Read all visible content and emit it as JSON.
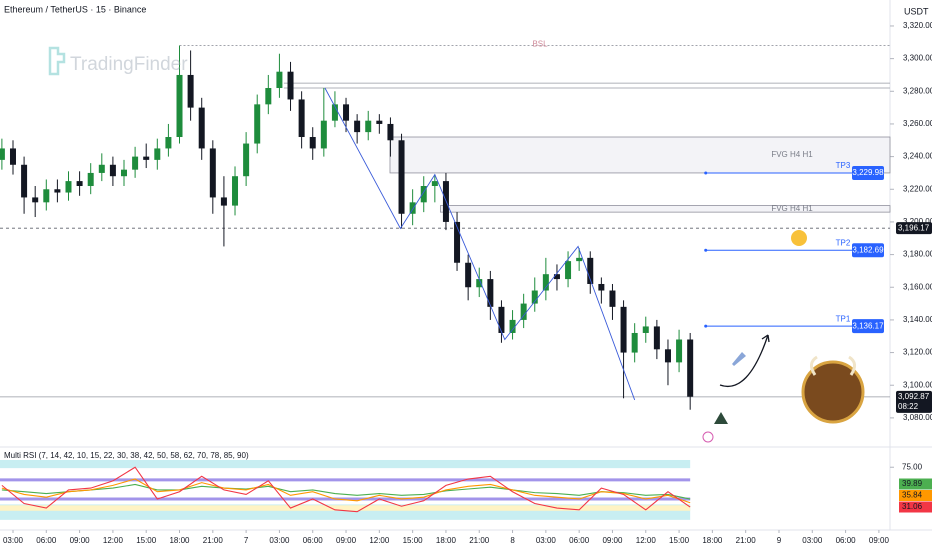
{
  "chart_data": {
    "type": "candlestick",
    "title": "Ethereum / TetherUS · 15 · Binance",
    "currency": "USDT",
    "watermark": "TradingFinder",
    "up_color": "#1e8c3c",
    "down_color": "#131722",
    "x": [
      2,
      3,
      4,
      5,
      6,
      7,
      8,
      9,
      10,
      11,
      12,
      13,
      14,
      15,
      16,
      17,
      18,
      19,
      20,
      21,
      22,
      23,
      24,
      25,
      26,
      27,
      28,
      29,
      30,
      31,
      32,
      33,
      34,
      35,
      36,
      37,
      38,
      39,
      40,
      41,
      42,
      43,
      44,
      45,
      46,
      47,
      48,
      49,
      50,
      51,
      52,
      53,
      54,
      55,
      56,
      57,
      58,
      59,
      60,
      61,
      62,
      63,
      64
    ],
    "open": [
      3238,
      3245,
      3235,
      3215,
      3212,
      3220,
      3218,
      3225,
      3222,
      3230,
      3235,
      3228,
      3232,
      3240,
      3238,
      3245,
      3252,
      3290,
      3270,
      3245,
      3215,
      3210,
      3228,
      3248,
      3272,
      3282,
      3292,
      3275,
      3252,
      3245,
      3262,
      3272,
      3262,
      3255,
      3262,
      3260,
      3250,
      3205,
      3212,
      3222,
      3225,
      3200,
      3175,
      3160,
      3165,
      3148,
      3132,
      3140,
      3150,
      3158,
      3168,
      3165,
      3176,
      3178,
      3162,
      3158,
      3148,
      3120,
      3132,
      3136,
      3122,
      3114,
      3128
    ],
    "high": [
      3251,
      3250,
      3240,
      3222,
      3226,
      3226,
      3231,
      3231,
      3236,
      3242,
      3240,
      3238,
      3246,
      3248,
      3251,
      3260,
      3308,
      3305,
      3276,
      3250,
      3228,
      3234,
      3255,
      3278,
      3290,
      3303,
      3298,
      3280,
      3258,
      3282,
      3280,
      3276,
      3266,
      3268,
      3266,
      3264,
      3254,
      3220,
      3228,
      3229,
      3230,
      3206,
      3180,
      3172,
      3170,
      3152,
      3146,
      3156,
      3166,
      3178,
      3174,
      3182,
      3184,
      3182,
      3166,
      3162,
      3152,
      3138,
      3142,
      3140,
      3128,
      3134,
      3132
    ],
    "low": [
      3232,
      3229,
      3205,
      3203,
      3207,
      3212,
      3213,
      3216,
      3217,
      3225,
      3222,
      3222,
      3227,
      3233,
      3232,
      3240,
      3248,
      3262,
      3238,
      3205,
      3185,
      3204,
      3222,
      3242,
      3266,
      3276,
      3268,
      3245,
      3238,
      3240,
      3258,
      3255,
      3248,
      3250,
      3254,
      3240,
      3196,
      3198,
      3206,
      3212,
      3195,
      3170,
      3152,
      3154,
      3140,
      3126,
      3128,
      3135,
      3145,
      3152,
      3158,
      3160,
      3170,
      3156,
      3150,
      3140,
      3092,
      3114,
      3126,
      3116,
      3100,
      3108,
      3085
    ],
    "close": [
      3245,
      3235,
      3215,
      3212,
      3220,
      3218,
      3225,
      3222,
      3230,
      3235,
      3228,
      3232,
      3240,
      3238,
      3245,
      3252,
      3290,
      3270,
      3245,
      3215,
      3210,
      3228,
      3248,
      3272,
      3282,
      3292,
      3275,
      3252,
      3245,
      3262,
      3272,
      3262,
      3255,
      3262,
      3260,
      3250,
      3205,
      3212,
      3222,
      3225,
      3200,
      3175,
      3160,
      3165,
      3148,
      3132,
      3140,
      3150,
      3158,
      3168,
      3165,
      3176,
      3178,
      3162,
      3158,
      3148,
      3120,
      3132,
      3136,
      3122,
      3114,
      3128,
      3093
    ],
    "xlim": [
      1.83,
      82.0
    ],
    "xticks": [
      {
        "value": 3,
        "label": "03:00"
      },
      {
        "value": 6,
        "label": "06:00"
      },
      {
        "value": 9,
        "label": "09:00"
      },
      {
        "value": 12,
        "label": "12:00"
      },
      {
        "value": 15,
        "label": "15:00"
      },
      {
        "value": 18,
        "label": "18:00"
      },
      {
        "value": 21,
        "label": "21:00"
      },
      {
        "value": 24,
        "label": "7"
      },
      {
        "value": 27,
        "label": "03:00"
      },
      {
        "value": 30,
        "label": "06:00"
      },
      {
        "value": 33,
        "label": "09:00"
      },
      {
        "value": 36,
        "label": "12:00"
      },
      {
        "value": 39,
        "label": "15:00"
      },
      {
        "value": 42,
        "label": "18:00"
      },
      {
        "value": 45,
        "label": "21:00"
      },
      {
        "value": 48,
        "label": "8"
      },
      {
        "value": 51,
        "label": "03:00"
      },
      {
        "value": 54,
        "label": "06:00"
      },
      {
        "value": 57,
        "label": "09:00"
      },
      {
        "value": 60,
        "label": "12:00"
      },
      {
        "value": 63,
        "label": "15:00"
      },
      {
        "value": 66,
        "label": "18:00"
      },
      {
        "value": 69,
        "label": "21:00"
      },
      {
        "value": 72,
        "label": "9"
      },
      {
        "value": 75,
        "label": "03:00"
      },
      {
        "value": 78,
        "label": "06:00"
      },
      {
        "value": 81,
        "label": "09:00"
      }
    ],
    "ylim": [
      3063.4,
      3335.9
    ],
    "yticks": [
      {
        "value": 3320,
        "label": "3,320.00"
      },
      {
        "value": 3300,
        "label": "3,300.00"
      },
      {
        "value": 3280,
        "label": "3,280.00"
      },
      {
        "value": 3260,
        "label": "3,260.00"
      },
      {
        "value": 3240,
        "label": "3,240.00"
      },
      {
        "value": 3220,
        "label": "3,220.00"
      },
      {
        "value": 3200,
        "label": "3,200.00"
      },
      {
        "value": 3180,
        "label": "3,180.00"
      },
      {
        "value": 3160,
        "label": "3,160.00"
      },
      {
        "value": 3140,
        "label": "3,140.00"
      },
      {
        "value": 3120,
        "label": "3,120.00"
      },
      {
        "value": 3100,
        "label": "3,100.00"
      },
      {
        "value": 3080,
        "label": "3,080.00"
      }
    ],
    "bsl": {
      "label": "BSL",
      "value": 3308
    },
    "levels": [
      {
        "value": 3285,
        "start": 27.4
      },
      {
        "value": 3282,
        "start": 27.4
      }
    ],
    "zones": [
      {
        "label": "FVG H4 H1",
        "from": 3230,
        "to": 3252,
        "start": 36.96
      },
      {
        "label": "FVG H4 H1",
        "from": 3206,
        "to": 3210,
        "start": 41.5
      }
    ],
    "targets": [
      {
        "label": "TP3",
        "value": 3229.98,
        "value_label": "3,229.98",
        "start": 65.4
      },
      {
        "label": "TP2",
        "value": 3182.69,
        "value_label": "3,182.69",
        "start": 65.4
      },
      {
        "label": "TP1",
        "value": 3136.17,
        "value_label": "3,136.17",
        "start": 65.4
      }
    ],
    "reference": {
      "value": 3196.17,
      "label": "3,196.17"
    },
    "last_price": {
      "value": 3092.87,
      "label": "3,092.87",
      "countdown": "08:22"
    },
    "zigzag": {
      "x": [
        31.1,
        37.9,
        41.0,
        47.3,
        53.9,
        59.0
      ],
      "y": [
        3282,
        3196,
        3229,
        3128,
        3185,
        3091
      ]
    },
    "rsi": {
      "title": "Multi RSI (7, 14, 42, 10, 15, 22, 30, 38, 42, 50, 58, 62, 70, 78, 85, 90)",
      "ylim": [
        8,
        94
      ],
      "yticks": [
        {
          "value": 75,
          "label": "75.00"
        }
      ],
      "bands": [
        {
          "from": 74,
          "to": 83,
          "color": "#c8eef2"
        },
        {
          "from": 17,
          "to": 34,
          "color": "#c8eef2"
        },
        {
          "from": 27,
          "to": 33,
          "color": "#fff3c4"
        }
      ],
      "lines": [
        {
          "value": 61,
          "color": "#8c7ae6"
        },
        {
          "value": 40,
          "color": "#8c7ae6"
        }
      ],
      "x": [
        2,
        4,
        6,
        8,
        10,
        12,
        14,
        16,
        18,
        20,
        22,
        24,
        26,
        28,
        30,
        32,
        34,
        36,
        38,
        40,
        42,
        44,
        46,
        48,
        50,
        52,
        54,
        56,
        58,
        60,
        62,
        64
      ],
      "series": [
        {
          "color": "#4caf50",
          "values": [
            50,
            48,
            46,
            48,
            50,
            52,
            56,
            50,
            50,
            54,
            52,
            51,
            54,
            48,
            50,
            46,
            44,
            46,
            44,
            45,
            49,
            51,
            53,
            50,
            47,
            46,
            44,
            48,
            47,
            44,
            45,
            39.89
          ]
        },
        {
          "color": "#ff9800",
          "values": [
            52,
            45,
            42,
            48,
            50,
            55,
            62,
            48,
            50,
            58,
            52,
            50,
            56,
            44,
            48,
            40,
            38,
            44,
            40,
            42,
            50,
            54,
            56,
            50,
            44,
            42,
            40,
            48,
            46,
            40,
            44,
            35.84
          ]
        },
        {
          "color": "#f23645",
          "values": [
            55,
            35,
            30,
            50,
            52,
            60,
            75,
            40,
            48,
            65,
            50,
            45,
            60,
            30,
            40,
            28,
            26,
            40,
            32,
            38,
            55,
            62,
            65,
            48,
            35,
            30,
            28,
            52,
            45,
            28,
            48,
            31.06
          ]
        }
      ]
    }
  }
}
